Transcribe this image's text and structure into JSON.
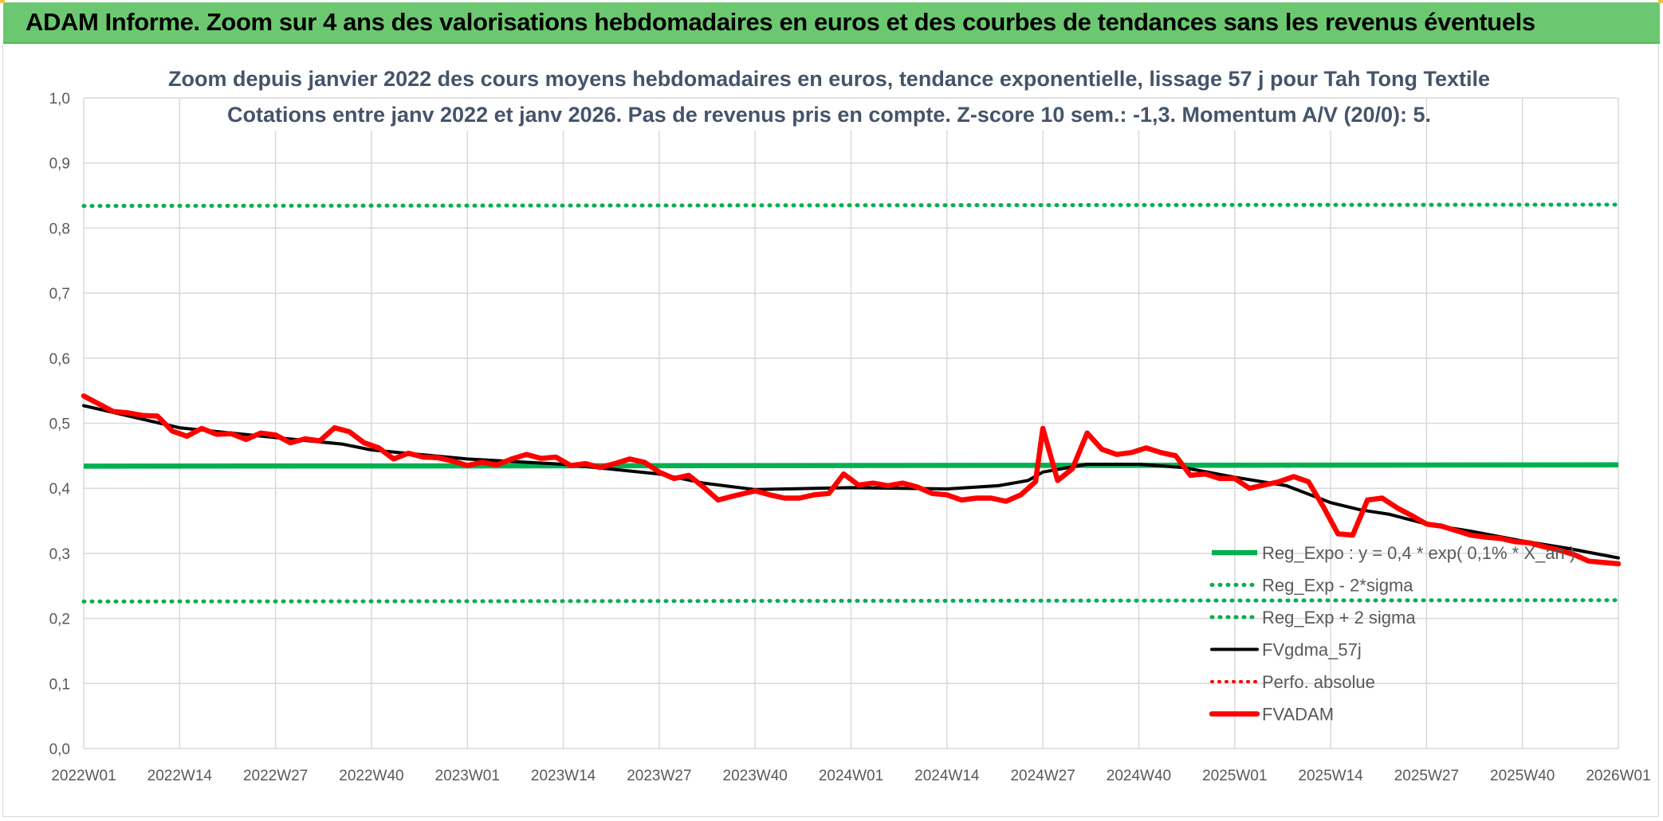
{
  "header": {
    "title": "ADAM Informe. Zoom sur 4 ans des valorisations hebdomadaires en euros et des courbes de tendances sans les revenus éventuels"
  },
  "chart_data": {
    "type": "line",
    "title_lines": [
      "Zoom depuis janvier 2022 des cours moyens hebdomadaires en euros, tendance exponentielle, lissage 57 j pour Tah Tong Textile",
      "Cotations entre janv 2022 et janv 2026. Pas de revenus pris en compte. Z-score 10 sem.: -1,3. Momentum A/V (20/0): 5."
    ],
    "ylim": [
      0,
      1
    ],
    "y_ticks": [
      "0,0",
      "0,1",
      "0,2",
      "0,3",
      "0,4",
      "0,5",
      "0,6",
      "0,7",
      "0,8",
      "0,9",
      "1,0"
    ],
    "x_ticks": [
      "2022W01",
      "2022W14",
      "2022W27",
      "2022W40",
      "2023W01",
      "2023W14",
      "2023W27",
      "2023W40",
      "2024W01",
      "2024W14",
      "2024W27",
      "2024W40",
      "2025W01",
      "2025W14",
      "2025W27",
      "2025W40",
      "2026W01"
    ],
    "grid": true,
    "legend_position": "bottom-right",
    "colors": {
      "reg_expo": "#00b050",
      "sigma": "#00b050",
      "fvgdma": "#000000",
      "perfo": "#ff0000",
      "fvadam": "#ff0000"
    },
    "series": [
      {
        "name": "Reg_Expo : y = 0,4 * exp( 0,1% * X_an )",
        "style": "solid",
        "points": [
          [
            "2022W01",
            0.434
          ],
          [
            "2026W01",
            0.436
          ]
        ]
      },
      {
        "name": "Reg_Exp - 2*sigma",
        "style": "dotted",
        "points": [
          [
            "2022W01",
            0.226
          ],
          [
            "2026W01",
            0.228
          ]
        ]
      },
      {
        "name": "Reg_Exp + 2 sigma",
        "style": "dotted",
        "points": [
          [
            "2022W01",
            0.834
          ],
          [
            "2026W01",
            0.836
          ]
        ]
      },
      {
        "name": "FVgdma_57j",
        "style": "solid",
        "points": [
          [
            "2022W01",
            0.527
          ],
          [
            "2022W14",
            0.493
          ],
          [
            "2022W27",
            0.478
          ],
          [
            "2022W36",
            0.468
          ],
          [
            "2022W40",
            0.459
          ],
          [
            "2023W01",
            0.445
          ],
          [
            "2023W14",
            0.437
          ],
          [
            "2023W27",
            0.422
          ],
          [
            "2023W33",
            0.408
          ],
          [
            "2023W40",
            0.398
          ],
          [
            "2024W01",
            0.401
          ],
          [
            "2024W14",
            0.399
          ],
          [
            "2024W21",
            0.404
          ],
          [
            "2024W25",
            0.412
          ],
          [
            "2024W27",
            0.425
          ],
          [
            "2024W33",
            0.437
          ],
          [
            "2024W40",
            0.437
          ],
          [
            "2024W46",
            0.432
          ],
          [
            "2025W01",
            0.417
          ],
          [
            "2025W08",
            0.404
          ],
          [
            "2025W14",
            0.378
          ],
          [
            "2025W18",
            0.367
          ],
          [
            "2025W22",
            0.36
          ],
          [
            "2025W27",
            0.345
          ],
          [
            "2025W33",
            0.334
          ],
          [
            "2025W40",
            0.319
          ],
          [
            "2025W46",
            0.308
          ],
          [
            "2026W01",
            0.293
          ]
        ]
      },
      {
        "name": "Perfo. absolue",
        "style": "dotted",
        "points": []
      },
      {
        "name": "FVADAM",
        "style": "solid",
        "points": [
          [
            "2022W01",
            0.542
          ],
          [
            "2022W03",
            0.53
          ],
          [
            "2022W05",
            0.518
          ],
          [
            "2022W07",
            0.516
          ],
          [
            "2022W09",
            0.512
          ],
          [
            "2022W11",
            0.511
          ],
          [
            "2022W13",
            0.488
          ],
          [
            "2022W15",
            0.48
          ],
          [
            "2022W17",
            0.492
          ],
          [
            "2022W19",
            0.483
          ],
          [
            "2022W21",
            0.484
          ],
          [
            "2022W23",
            0.475
          ],
          [
            "2022W25",
            0.485
          ],
          [
            "2022W27",
            0.482
          ],
          [
            "2022W29",
            0.47
          ],
          [
            "2022W31",
            0.476
          ],
          [
            "2022W33",
            0.473
          ],
          [
            "2022W35",
            0.493
          ],
          [
            "2022W37",
            0.487
          ],
          [
            "2022W39",
            0.47
          ],
          [
            "2022W41",
            0.462
          ],
          [
            "2022W43",
            0.445
          ],
          [
            "2022W45",
            0.454
          ],
          [
            "2022W47",
            0.448
          ],
          [
            "2022W49",
            0.447
          ],
          [
            "2022W51",
            0.442
          ],
          [
            "2023W01",
            0.435
          ],
          [
            "2023W03",
            0.44
          ],
          [
            "2023W05",
            0.436
          ],
          [
            "2023W07",
            0.445
          ],
          [
            "2023W09",
            0.452
          ],
          [
            "2023W11",
            0.446
          ],
          [
            "2023W13",
            0.448
          ],
          [
            "2023W15",
            0.435
          ],
          [
            "2023W17",
            0.438
          ],
          [
            "2023W19",
            0.432
          ],
          [
            "2023W21",
            0.438
          ],
          [
            "2023W23",
            0.445
          ],
          [
            "2023W25",
            0.44
          ],
          [
            "2023W27",
            0.425
          ],
          [
            "2023W29",
            0.415
          ],
          [
            "2023W31",
            0.42
          ],
          [
            "2023W33",
            0.402
          ],
          [
            "2023W35",
            0.382
          ],
          [
            "2023W37",
            0.388
          ],
          [
            "2023W40",
            0.396
          ],
          [
            "2023W42",
            0.39
          ],
          [
            "2023W44",
            0.385
          ],
          [
            "2023W46",
            0.385
          ],
          [
            "2023W48",
            0.39
          ],
          [
            "2023W50",
            0.392
          ],
          [
            "2023W52",
            0.422
          ],
          [
            "2024W02",
            0.405
          ],
          [
            "2024W04",
            0.408
          ],
          [
            "2024W06",
            0.404
          ],
          [
            "2024W08",
            0.408
          ],
          [
            "2024W10",
            0.402
          ],
          [
            "2024W12",
            0.392
          ],
          [
            "2024W14",
            0.39
          ],
          [
            "2024W16",
            0.382
          ],
          [
            "2024W18",
            0.385
          ],
          [
            "2024W20",
            0.385
          ],
          [
            "2024W22",
            0.38
          ],
          [
            "2024W24",
            0.39
          ],
          [
            "2024W26",
            0.41
          ],
          [
            "2024W27",
            0.492
          ],
          [
            "2024W29",
            0.412
          ],
          [
            "2024W31",
            0.43
          ],
          [
            "2024W33",
            0.485
          ],
          [
            "2024W35",
            0.46
          ],
          [
            "2024W37",
            0.452
          ],
          [
            "2024W39",
            0.455
          ],
          [
            "2024W41",
            0.462
          ],
          [
            "2024W43",
            0.455
          ],
          [
            "2024W45",
            0.45
          ],
          [
            "2024W47",
            0.42
          ],
          [
            "2024W49",
            0.422
          ],
          [
            "2024W51",
            0.415
          ],
          [
            "2025W01",
            0.415
          ],
          [
            "2025W03",
            0.4
          ],
          [
            "2025W05",
            0.405
          ],
          [
            "2025W07",
            0.41
          ],
          [
            "2025W09",
            0.418
          ],
          [
            "2025W11",
            0.41
          ],
          [
            "2025W13",
            0.372
          ],
          [
            "2025W15",
            0.33
          ],
          [
            "2025W17",
            0.328
          ],
          [
            "2025W19",
            0.382
          ],
          [
            "2025W21",
            0.385
          ],
          [
            "2025W23",
            0.37
          ],
          [
            "2025W25",
            0.358
          ],
          [
            "2025W27",
            0.345
          ],
          [
            "2025W29",
            0.342
          ],
          [
            "2025W31",
            0.335
          ],
          [
            "2025W33",
            0.328
          ],
          [
            "2025W35",
            0.325
          ],
          [
            "2025W37",
            0.323
          ],
          [
            "2025W39",
            0.318
          ],
          [
            "2025W41",
            0.316
          ],
          [
            "2025W43",
            0.31
          ],
          [
            "2025W45",
            0.305
          ],
          [
            "2025W47",
            0.298
          ],
          [
            "2025W49",
            0.288
          ],
          [
            "2026W01",
            0.284
          ]
        ]
      }
    ]
  }
}
